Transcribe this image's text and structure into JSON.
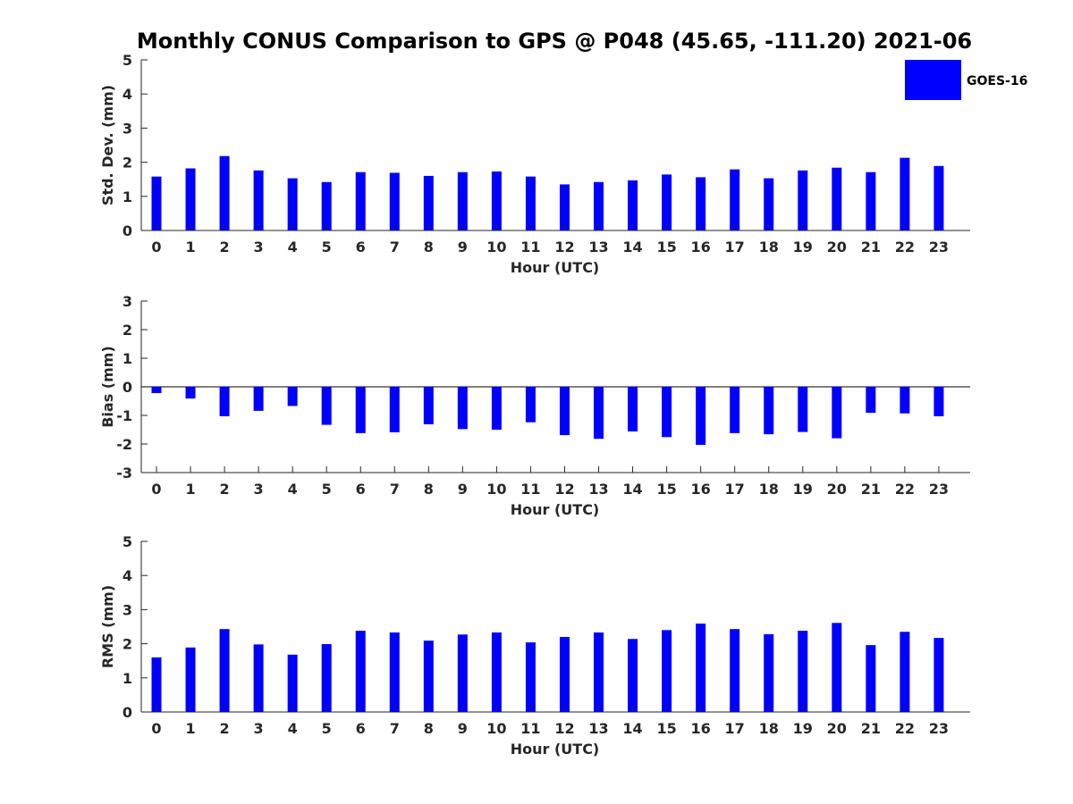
{
  "title": "Monthly CONUS Comparison to GPS @ P048 (45.65, -111.20) 2021-06",
  "legend": {
    "label": "GOES-16",
    "color": "#0000ff",
    "placement": "top-right"
  },
  "bar_color": "#0000ff",
  "chart_data": [
    {
      "type": "bar",
      "xlabel": "Hour (UTC)",
      "ylabel": "Std. Dev. (mm)",
      "ylim": [
        0,
        5
      ],
      "yticks": [
        0,
        1,
        2,
        3,
        4,
        5
      ],
      "categories": [
        "0",
        "1",
        "2",
        "3",
        "4",
        "5",
        "6",
        "7",
        "8",
        "9",
        "10",
        "11",
        "12",
        "13",
        "14",
        "15",
        "16",
        "17",
        "18",
        "19",
        "20",
        "21",
        "22",
        "23"
      ],
      "series": [
        {
          "name": "GOES-16",
          "values": [
            1.58,
            1.82,
            2.18,
            1.76,
            1.53,
            1.42,
            1.71,
            1.69,
            1.6,
            1.71,
            1.73,
            1.58,
            1.35,
            1.42,
            1.47,
            1.64,
            1.56,
            1.79,
            1.53,
            1.76,
            1.84,
            1.71,
            2.13,
            1.89
          ]
        }
      ]
    },
    {
      "type": "bar",
      "xlabel": "Hour (UTC)",
      "ylabel": "Bias (mm)",
      "ylim": [
        -3,
        3
      ],
      "yticks": [
        -3,
        -2,
        -1,
        0,
        1,
        2,
        3
      ],
      "categories": [
        "0",
        "1",
        "2",
        "3",
        "4",
        "5",
        "6",
        "7",
        "8",
        "9",
        "10",
        "11",
        "12",
        "13",
        "14",
        "15",
        "16",
        "17",
        "18",
        "19",
        "20",
        "21",
        "22",
        "23"
      ],
      "series": [
        {
          "name": "GOES-16",
          "values": [
            -0.22,
            -0.41,
            -1.03,
            -0.84,
            -0.67,
            -1.33,
            -1.62,
            -1.59,
            -1.31,
            -1.48,
            -1.5,
            -1.24,
            -1.69,
            -1.82,
            -1.56,
            -1.76,
            -2.03,
            -1.62,
            -1.66,
            -1.58,
            -1.8,
            -0.91,
            -0.93,
            -1.03
          ]
        }
      ]
    },
    {
      "type": "bar",
      "xlabel": "Hour (UTC)",
      "ylabel": "RMS (mm)",
      "ylim": [
        0,
        5
      ],
      "yticks": [
        0,
        1,
        2,
        3,
        4,
        5
      ],
      "categories": [
        "0",
        "1",
        "2",
        "3",
        "4",
        "5",
        "6",
        "7",
        "8",
        "9",
        "10",
        "11",
        "12",
        "13",
        "14",
        "15",
        "16",
        "17",
        "18",
        "19",
        "20",
        "21",
        "22",
        "23"
      ],
      "series": [
        {
          "name": "GOES-16",
          "values": [
            1.6,
            1.89,
            2.43,
            1.98,
            1.68,
            1.99,
            2.38,
            2.33,
            2.09,
            2.27,
            2.33,
            2.04,
            2.2,
            2.33,
            2.14,
            2.4,
            2.59,
            2.43,
            2.28,
            2.38,
            2.61,
            1.96,
            2.35,
            2.17
          ]
        }
      ]
    }
  ]
}
